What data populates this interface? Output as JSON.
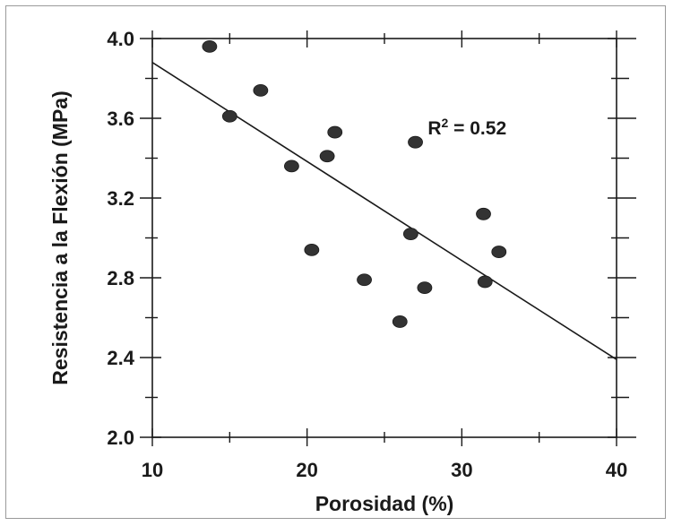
{
  "chart_data": {
    "type": "scatter",
    "xlabel": "Porosidad (%)",
    "ylabel": "Resistencia a la Flexión (MPa)",
    "xlim": [
      10,
      40
    ],
    "ylim": [
      2.0,
      4.0
    ],
    "xticks": [
      10,
      20,
      30,
      40
    ],
    "xtick_labels": [
      "10",
      "20",
      "30",
      "40"
    ],
    "yticks": [
      2.0,
      2.4,
      2.8,
      3.2,
      3.6,
      4.0
    ],
    "ytick_labels": [
      "2.0",
      "2.4",
      "2.8",
      "3.2",
      "3.6",
      "4.0"
    ],
    "grid": false,
    "series": [
      {
        "x": [
          13.7,
          15.0,
          17.0,
          19.0,
          20.3,
          21.3,
          21.8,
          23.7,
          26.0,
          26.7,
          27.0,
          27.6,
          31.4,
          31.5,
          32.4
        ],
        "y": [
          3.96,
          3.61,
          3.74,
          3.36,
          2.94,
          3.41,
          3.53,
          2.79,
          2.58,
          3.02,
          3.48,
          2.75,
          3.12,
          2.78,
          2.93
        ],
        "color": "#333333"
      }
    ],
    "fit_line": {
      "x": [
        10,
        40
      ],
      "y": [
        3.88,
        2.39
      ]
    },
    "annotation": {
      "text": "R",
      "superscript": "2",
      "value": " = 0.52",
      "x": 27.8,
      "y": 3.52
    }
  }
}
